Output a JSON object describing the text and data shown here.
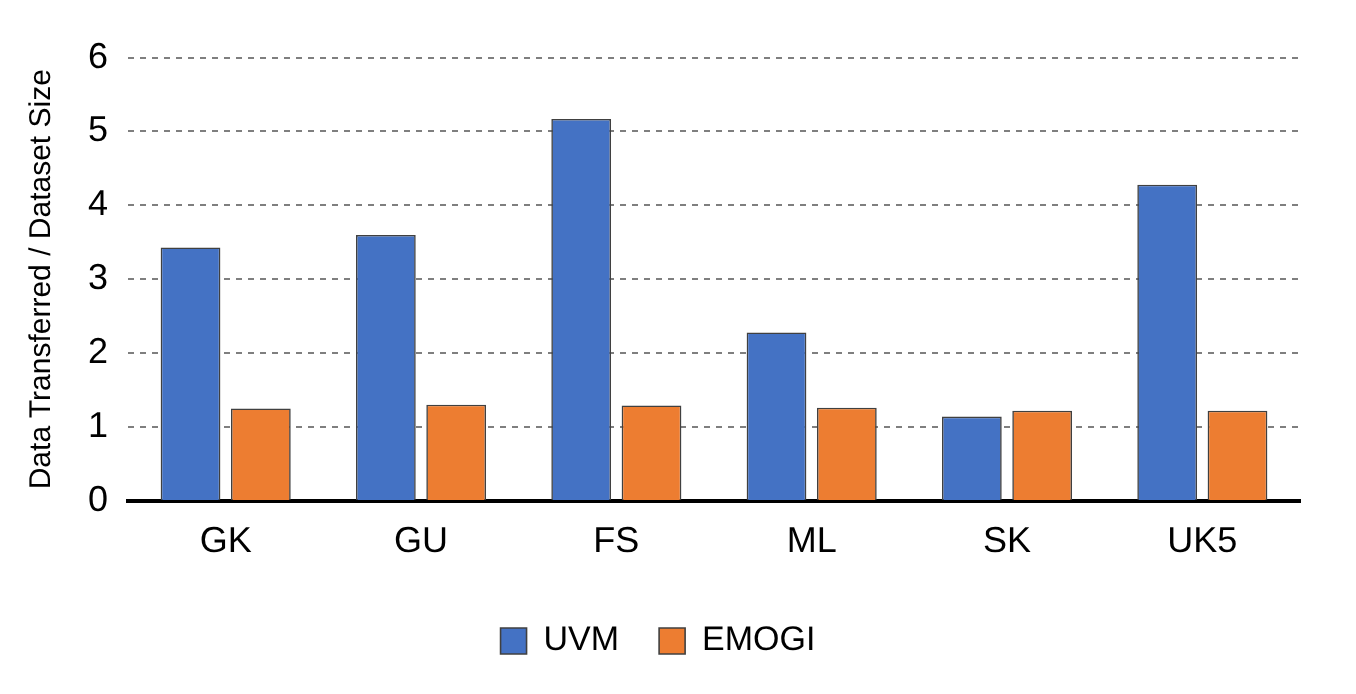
{
  "chart_data": {
    "type": "bar",
    "ylabel": "Data Transferred / Dataset Size",
    "categories": [
      "GK",
      "GU",
      "FS",
      "ML",
      "SK",
      "UK5"
    ],
    "series": [
      {
        "name": "UVM",
        "color": "#4472c4",
        "values": [
          3.43,
          3.6,
          5.17,
          2.28,
          1.14,
          4.28
        ]
      },
      {
        "name": "EMOGI",
        "color": "#ed7d31",
        "values": [
          1.25,
          1.3,
          1.29,
          1.26,
          1.22,
          1.22
        ]
      }
    ],
    "ylim": [
      0,
      6
    ],
    "yticks": [
      0,
      1,
      2,
      3,
      4,
      5,
      6
    ],
    "grid": "y",
    "legend": "bottom"
  }
}
